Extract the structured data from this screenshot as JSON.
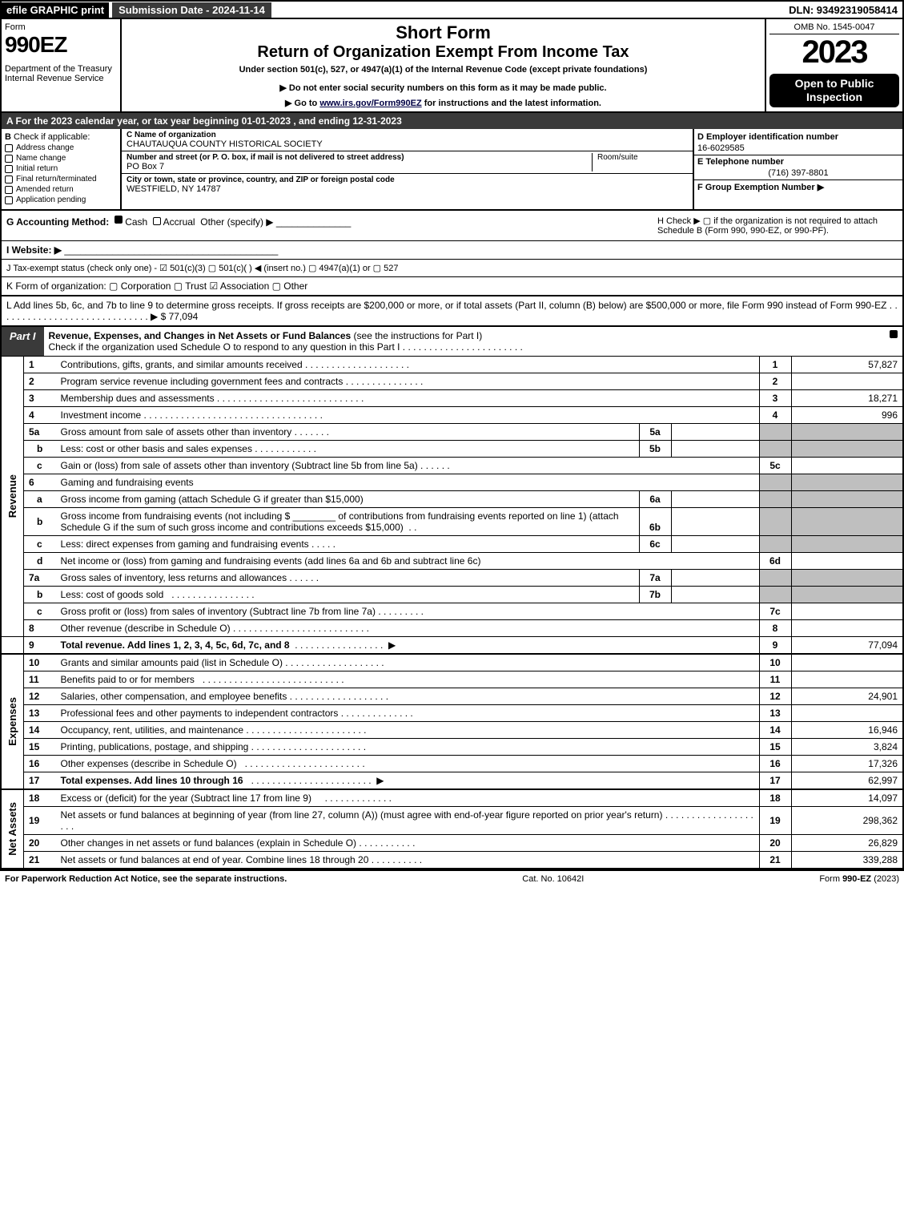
{
  "top": {
    "efile": "efile GRAPHIC print",
    "submission": "Submission Date - 2024-11-14",
    "dln": "DLN: 93492319058414"
  },
  "header": {
    "form_word": "Form",
    "form_num": "990EZ",
    "dept": "Department of the Treasury\nInternal Revenue Service",
    "short": "Short Form",
    "title": "Return of Organization Exempt From Income Tax",
    "under": "Under section 501(c), 527, or 4947(a)(1) of the Internal Revenue Code (except private foundations)",
    "warn": "▶ Do not enter social security numbers on this form as it may be made public.",
    "goto_pre": "▶ Go to ",
    "goto_link": "www.irs.gov/Form990EZ",
    "goto_post": " for instructions and the latest information.",
    "omb": "OMB No. 1545-0047",
    "year": "2023",
    "open": "Open to Public Inspection"
  },
  "row_a": "A  For the 2023 calendar year, or tax year beginning 01-01-2023 , and ending 12-31-2023",
  "col_b": {
    "hdr": "B",
    "label": "Check if applicable:",
    "items": [
      "Address change",
      "Name change",
      "Initial return",
      "Final return/terminated",
      "Amended return",
      "Application pending"
    ]
  },
  "col_c": {
    "name_lbl": "C Name of organization",
    "name": "CHAUTAUQUA COUNTY HISTORICAL SOCIETY",
    "street_lbl": "Number and street (or P. O. box, if mail is not delivered to street address)",
    "street": "PO Box 7",
    "room_lbl": "Room/suite",
    "city_lbl": "City or town, state or province, country, and ZIP or foreign postal code",
    "city": "WESTFIELD, NY  14787"
  },
  "col_d": {
    "ein_lbl": "D Employer identification number",
    "ein": "16-6029585",
    "tel_lbl": "E Telephone number",
    "tel": "(716) 397-8801",
    "grp_lbl": "F Group Exemption Number  ▶"
  },
  "line_g": {
    "label": "G Accounting Method:",
    "cash": "Cash",
    "accrual": "Accrual",
    "other": "Other (specify) ▶"
  },
  "line_h": "H  Check ▶  ▢  if the organization is not required to attach Schedule B (Form 990, 990-EZ, or 990-PF).",
  "line_i": "I Website: ▶",
  "line_j": "J Tax-exempt status (check only one) -  ☑ 501(c)(3)  ▢ 501(c)(  ) ◀ (insert no.)  ▢ 4947(a)(1) or  ▢ 527",
  "line_k": "K Form of organization:   ▢ Corporation   ▢ Trust   ☑ Association   ▢ Other",
  "line_l": {
    "text": "L Add lines 5b, 6c, and 7b to line 9 to determine gross receipts. If gross receipts are $200,000 or more, or if total assets (Part II, column (B) below) are $500,000 or more, file Form 990 instead of Form 990-EZ",
    "amt": "▶ $ 77,094"
  },
  "part1": {
    "tab": "Part I",
    "title": "Revenue, Expenses, and Changes in Net Assets or Fund Balances",
    "note": "(see the instructions for Part I)",
    "check_note": "Check if the organization used Schedule O to respond to any question in this Part I"
  },
  "sides": {
    "rev": "Revenue",
    "exp": "Expenses",
    "na": "Net Assets"
  },
  "lines": {
    "1": {
      "n": "1",
      "t": "Contributions, gifts, grants, and similar amounts received",
      "ln": "1",
      "v": "57,827"
    },
    "2": {
      "n": "2",
      "t": "Program service revenue including government fees and contracts",
      "ln": "2",
      "v": ""
    },
    "3": {
      "n": "3",
      "t": "Membership dues and assessments",
      "ln": "3",
      "v": "18,271"
    },
    "4": {
      "n": "4",
      "t": "Investment income",
      "ln": "4",
      "v": "996"
    },
    "5a": {
      "n": "5a",
      "t": "Gross amount from sale of assets other than inventory",
      "in": "5a"
    },
    "5b": {
      "n": "b",
      "t": "Less: cost or other basis and sales expenses",
      "in": "5b"
    },
    "5c": {
      "n": "c",
      "t": "Gain or (loss) from sale of assets other than inventory (Subtract line 5b from line 5a)",
      "ln": "5c",
      "v": ""
    },
    "6": {
      "n": "6",
      "t": "Gaming and fundraising events"
    },
    "6a": {
      "n": "a",
      "t": "Gross income from gaming (attach Schedule G if greater than $15,000)",
      "in": "6a"
    },
    "6b": {
      "n": "b",
      "t1": "Gross income from fundraising events (not including $",
      "t2": "of contributions from fundraising events reported on line 1) (attach Schedule G if the sum of such gross income and contributions exceeds $15,000)",
      "in": "6b"
    },
    "6c": {
      "n": "c",
      "t": "Less: direct expenses from gaming and fundraising events",
      "in": "6c"
    },
    "6d": {
      "n": "d",
      "t": "Net income or (loss) from gaming and fundraising events (add lines 6a and 6b and subtract line 6c)",
      "ln": "6d",
      "v": ""
    },
    "7a": {
      "n": "7a",
      "t": "Gross sales of inventory, less returns and allowances",
      "in": "7a"
    },
    "7b": {
      "n": "b",
      "t": "Less: cost of goods sold",
      "in": "7b"
    },
    "7c": {
      "n": "c",
      "t": "Gross profit or (loss) from sales of inventory (Subtract line 7b from line 7a)",
      "ln": "7c",
      "v": ""
    },
    "8": {
      "n": "8",
      "t": "Other revenue (describe in Schedule O)",
      "ln": "8",
      "v": ""
    },
    "9": {
      "n": "9",
      "t": "Total revenue. Add lines 1, 2, 3, 4, 5c, 6d, 7c, and 8",
      "ln": "9",
      "v": "77,094",
      "bold": true
    },
    "10": {
      "n": "10",
      "t": "Grants and similar amounts paid (list in Schedule O)",
      "ln": "10",
      "v": ""
    },
    "11": {
      "n": "11",
      "t": "Benefits paid to or for members",
      "ln": "11",
      "v": ""
    },
    "12": {
      "n": "12",
      "t": "Salaries, other compensation, and employee benefits",
      "ln": "12",
      "v": "24,901"
    },
    "13": {
      "n": "13",
      "t": "Professional fees and other payments to independent contractors",
      "ln": "13",
      "v": ""
    },
    "14": {
      "n": "14",
      "t": "Occupancy, rent, utilities, and maintenance",
      "ln": "14",
      "v": "16,946"
    },
    "15": {
      "n": "15",
      "t": "Printing, publications, postage, and shipping",
      "ln": "15",
      "v": "3,824"
    },
    "16": {
      "n": "16",
      "t": "Other expenses (describe in Schedule O)",
      "ln": "16",
      "v": "17,326"
    },
    "17": {
      "n": "17",
      "t": "Total expenses. Add lines 10 through 16",
      "ln": "17",
      "v": "62,997",
      "bold": true
    },
    "18": {
      "n": "18",
      "t": "Excess or (deficit) for the year (Subtract line 17 from line 9)",
      "ln": "18",
      "v": "14,097"
    },
    "19": {
      "n": "19",
      "t": "Net assets or fund balances at beginning of year (from line 27, column (A)) (must agree with end-of-year figure reported on prior year's return)",
      "ln": "19",
      "v": "298,362"
    },
    "20": {
      "n": "20",
      "t": "Other changes in net assets or fund balances (explain in Schedule O)",
      "ln": "20",
      "v": "26,829"
    },
    "21": {
      "n": "21",
      "t": "Net assets or fund balances at end of year. Combine lines 18 through 20",
      "ln": "21",
      "v": "339,288"
    }
  },
  "footer": {
    "l": "For Paperwork Reduction Act Notice, see the separate instructions.",
    "c": "Cat. No. 10642I",
    "r": "Form 990-EZ (2023)"
  },
  "colors": {
    "darkbar": "#3a3a3a",
    "shade": "#bfbfbf"
  }
}
